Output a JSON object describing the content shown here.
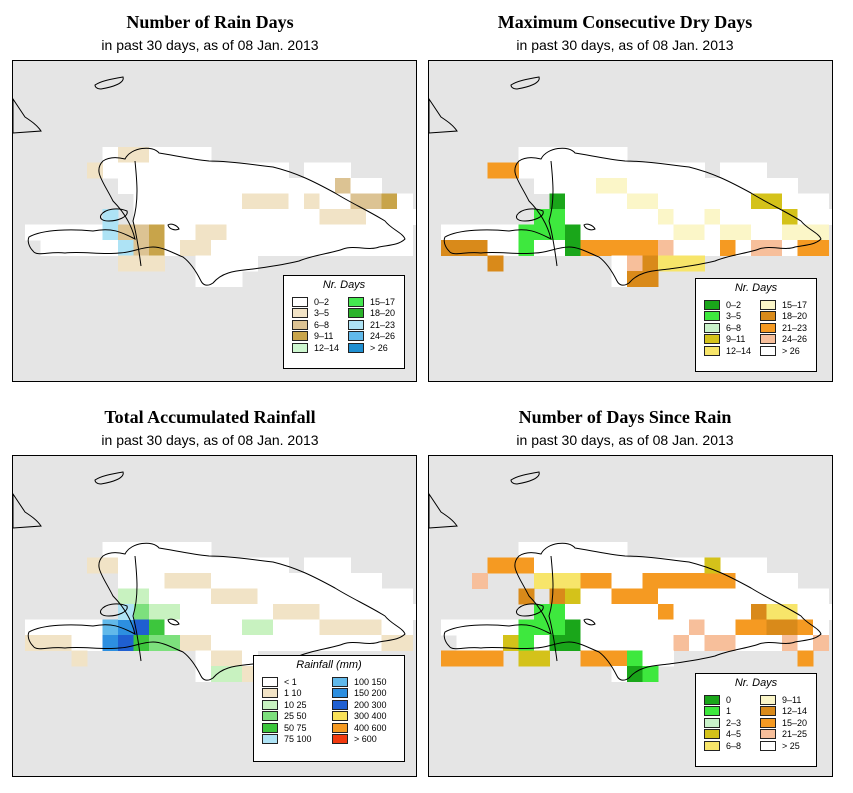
{
  "panels": [
    {
      "title": "Number of Rain Days",
      "subtitle": "in past 30 days, as of  08 Jan. 2013",
      "legend_title": "Nr. Days",
      "legend": [
        {
          "label": "0–2",
          "color": "#ffffff"
        },
        {
          "label": "3–5",
          "color": "#f1e3c6"
        },
        {
          "label": "6–8",
          "color": "#dcc393"
        },
        {
          "label": "9–11",
          "color": "#c8a44a"
        },
        {
          "label": "12–14",
          "color": "#cdf7cf"
        },
        {
          "label": "15–17",
          "color": "#44e84f"
        },
        {
          "label": "18–20",
          "color": "#2bb32b"
        },
        {
          "label": "21–23",
          "color": "#aee3f5"
        },
        {
          "label": "24–26",
          "color": "#61b9ea"
        },
        {
          "label": "> 26",
          "color": "#1f8fd1"
        }
      ]
    },
    {
      "title": "Maximum Consecutive Dry Days",
      "subtitle": "in past 30 days, as of  08 Jan. 2013",
      "legend_title": "Nr. Days",
      "legend": [
        {
          "label": "0–2",
          "color": "#1aa61a"
        },
        {
          "label": "3–5",
          "color": "#3ee83e"
        },
        {
          "label": "6–8",
          "color": "#c9f2c9"
        },
        {
          "label": "9–11",
          "color": "#d4c21a"
        },
        {
          "label": "12–14",
          "color": "#f7e56a"
        },
        {
          "label": "15–17",
          "color": "#fbf6c8"
        },
        {
          "label": "18–20",
          "color": "#d98a1a"
        },
        {
          "label": "21–23",
          "color": "#f59a22"
        },
        {
          "label": "24–26",
          "color": "#f7bf9b"
        },
        {
          "label": "> 26",
          "color": "#ffffff"
        }
      ]
    },
    {
      "title": "Total Accumulated Rainfall",
      "subtitle": "in past 30 days, as of  08 Jan. 2013",
      "legend_title": "Rainfall (mm)",
      "legend": [
        {
          "label": "< 1",
          "color": "#ffffff"
        },
        {
          "label": "1    10",
          "color": "#f1e3c6"
        },
        {
          "label": "10    25",
          "color": "#c8f2c0"
        },
        {
          "label": "25    50",
          "color": "#7de07d"
        },
        {
          "label": "50    75",
          "color": "#3dc63d"
        },
        {
          "label": "75   100",
          "color": "#aee3f5"
        },
        {
          "label": "100   150",
          "color": "#61b9ea"
        },
        {
          "label": "150   200",
          "color": "#2d8fe0"
        },
        {
          "label": "200   300",
          "color": "#1f5fd1"
        },
        {
          "label": "300   400",
          "color": "#f9e25a"
        },
        {
          "label": "400   600",
          "color": "#f59a22"
        },
        {
          "label": "> 600",
          "color": "#f23a0f"
        }
      ]
    },
    {
      "title": "Number of Days Since Rain",
      "subtitle": "in past 30 days, as of  08 Jan. 2013",
      "legend_title": "Nr. Days",
      "legend": [
        {
          "label": "0",
          "color": "#1aa61a"
        },
        {
          "label": "1",
          "color": "#3ee83e"
        },
        {
          "label": "2–3",
          "color": "#c9f2c9"
        },
        {
          "label": "4–5",
          "color": "#d4c21a"
        },
        {
          "label": "6–8",
          "color": "#f7e56a"
        },
        {
          "label": "9–11",
          "color": "#fbf6c8"
        },
        {
          "label": "12–14",
          "color": "#d98a1a"
        },
        {
          "label": "15–20",
          "color": "#f59a22"
        },
        {
          "label": "21–25",
          "color": "#f7bf9b"
        },
        {
          "label": "> 25",
          "color": "#ffffff"
        }
      ]
    }
  ]
}
